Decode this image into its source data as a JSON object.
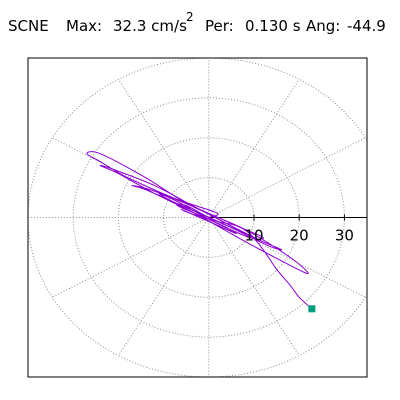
{
  "header": {
    "station": "SCNE",
    "max_label": "Max:",
    "max_value": "32.3 cm/s",
    "max_unit_exp": "2",
    "period_label": "Per:",
    "period_value": "0.130 s",
    "angle_label": "Ang:",
    "angle_value": "-44.9"
  },
  "colors": {
    "trace": "#8c00d2",
    "endpoint_marker": "#009e80",
    "grid": "#8c8c8c",
    "axis": "#000000"
  },
  "chart_data": {
    "type": "scatter",
    "title": "",
    "xlabel": "",
    "ylabel": "",
    "polar_grid": true,
    "ring_radii": [
      10,
      20,
      30,
      40
    ],
    "spoke_angles_deg": [
      0,
      30,
      60,
      90,
      120,
      150,
      180,
      210,
      240,
      270,
      300,
      330
    ],
    "tick_labels": [
      "10",
      "20",
      "30"
    ],
    "xlim": [
      -40,
      35
    ],
    "ylim": [
      -40,
      40
    ],
    "endpoint": [
      22.8,
      -22.9
    ],
    "trace": [
      [
        0,
        0
      ],
      [
        2,
        1
      ],
      [
        -3,
        3
      ],
      [
        -8,
        5
      ],
      [
        -18,
        10
      ],
      [
        -24,
        14
      ],
      [
        -27,
        16
      ],
      [
        -24,
        16
      ],
      [
        -14,
        10
      ],
      [
        -4,
        3
      ],
      [
        8,
        -3
      ],
      [
        18,
        -10
      ],
      [
        22,
        -14
      ],
      [
        18,
        -12
      ],
      [
        8,
        -6
      ],
      [
        -3,
        1
      ],
      [
        -12,
        6
      ],
      [
        -20,
        11
      ],
      [
        -24,
        13
      ],
      [
        -21,
        12
      ],
      [
        -12,
        8
      ],
      [
        -2,
        2
      ],
      [
        10,
        -5
      ],
      [
        16,
        -8
      ],
      [
        13,
        -7
      ],
      [
        4,
        -2
      ],
      [
        -6,
        3
      ],
      [
        -14,
        7
      ],
      [
        -17,
        8
      ],
      [
        -13,
        7
      ],
      [
        -4,
        3
      ],
      [
        6,
        -2
      ],
      [
        12,
        -5
      ],
      [
        9,
        -5
      ],
      [
        1,
        -1
      ],
      [
        -7,
        4
      ],
      [
        -11,
        6
      ],
      [
        -8,
        4
      ],
      [
        -2,
        1
      ],
      [
        4,
        -2
      ],
      [
        8,
        -4
      ],
      [
        6,
        -3
      ],
      [
        0,
        0
      ],
      [
        -5,
        3
      ],
      [
        -7,
        3
      ],
      [
        -3,
        1
      ],
      [
        3,
        -2
      ],
      [
        6,
        -4
      ],
      [
        4,
        -3
      ],
      [
        -2,
        0
      ],
      [
        -6,
        2
      ],
      [
        -4,
        1
      ],
      [
        2,
        -1
      ],
      [
        6,
        -2
      ],
      [
        9,
        -4
      ],
      [
        12,
        -8
      ],
      [
        15,
        -13
      ],
      [
        18,
        -17
      ],
      [
        20,
        -20
      ],
      [
        22.8,
        -22.9
      ]
    ]
  }
}
